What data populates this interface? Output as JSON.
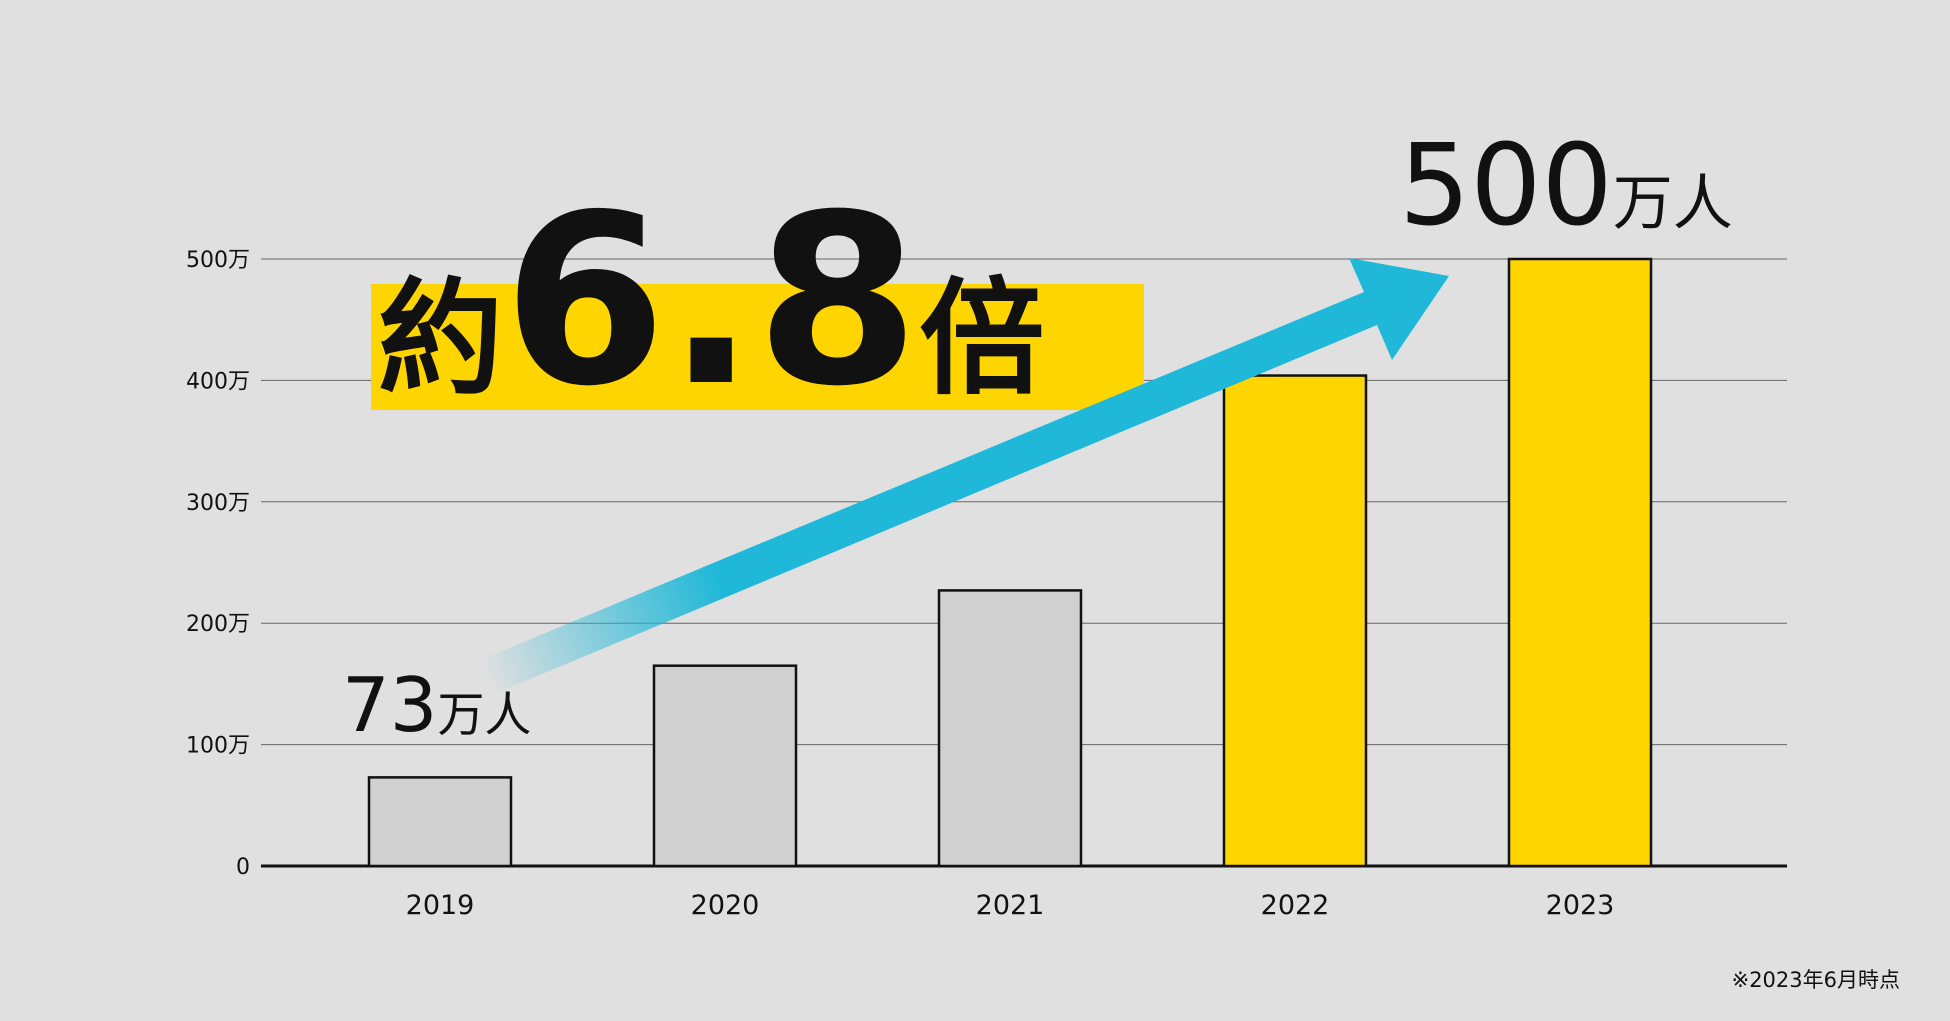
{
  "chart_data": {
    "type": "bar",
    "annotation": "約6.8倍",
    "footnote": "※2023年6月時点",
    "categories": [
      "2019",
      "2020",
      "2021",
      "2022",
      "2023"
    ],
    "values": [
      73,
      165,
      227,
      404,
      500
    ],
    "value_labels": [
      "73万人",
      null,
      null,
      null,
      "500万人"
    ],
    "colors": [
      "#d0d0d0",
      "#d0d0d0",
      "#d0d0d0",
      "#ffd500",
      "#ffd500"
    ],
    "ylim": [
      0,
      500
    ],
    "yticks": [
      0,
      {
        "value": 100,
        "label": "100万"
      },
      {
        "value": 200,
        "label": "200万"
      },
      {
        "value": 300,
        "label": "300万"
      },
      {
        "value": 400,
        "label": "400万"
      },
      {
        "value": 500,
        "label": "500万"
      }
    ],
    "grid": true
  }
}
